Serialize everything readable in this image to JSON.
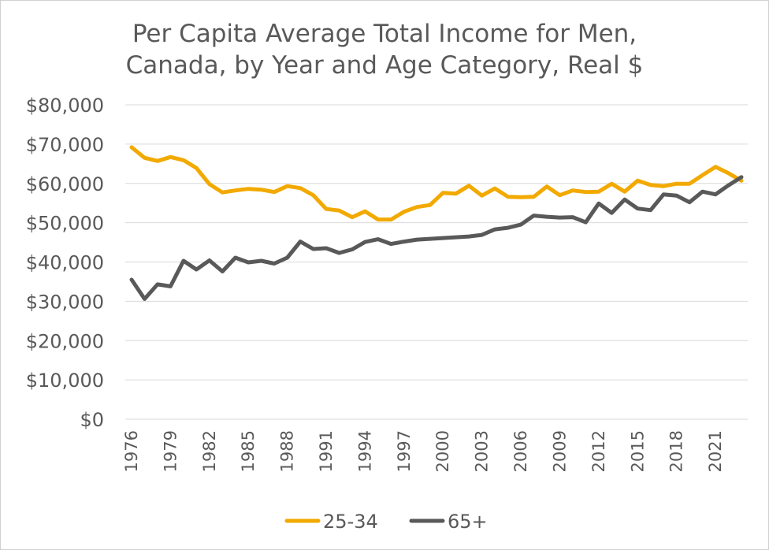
{
  "chart_data": {
    "type": "line",
    "title_lines": [
      "Per Capita Average Total Income for Men,",
      "Canada, by Year and Age Category, Real $"
    ],
    "xlabel": "",
    "ylabel": "",
    "x": [
      1976,
      1977,
      1978,
      1979,
      1980,
      1981,
      1982,
      1983,
      1984,
      1985,
      1986,
      1987,
      1988,
      1989,
      1990,
      1991,
      1992,
      1993,
      1994,
      1995,
      1996,
      1997,
      1998,
      1999,
      2000,
      2001,
      2002,
      2003,
      2004,
      2005,
      2006,
      2007,
      2008,
      2009,
      2010,
      2011,
      2012,
      2013,
      2014,
      2015,
      2016,
      2017,
      2018,
      2019,
      2020,
      2021,
      2022,
      2023
    ],
    "x_tick_labels": [
      "1976",
      "1979",
      "1982",
      "1985",
      "1988",
      "1991",
      "1994",
      "1997",
      "2000",
      "2003",
      "2006",
      "2009",
      "2012",
      "2015",
      "2018",
      "2021"
    ],
    "ylim": [
      0,
      80000
    ],
    "y_ticks": [
      0,
      10000,
      20000,
      30000,
      40000,
      50000,
      60000,
      70000,
      80000
    ],
    "y_tick_labels": [
      "$0",
      "$10,000",
      "$20,000",
      "$30,000",
      "$40,000",
      "$50,000",
      "$60,000",
      "$70,000",
      "$80,000"
    ],
    "grid": "horizontal",
    "legend_position": "bottom",
    "series": [
      {
        "name": "25-34",
        "color": "#F2A900",
        "values": [
          69200,
          66500,
          65700,
          66700,
          65900,
          63900,
          59800,
          57700,
          58200,
          58600,
          58400,
          57800,
          59300,
          58800,
          57000,
          53500,
          53100,
          51400,
          52900,
          50800,
          50800,
          52800,
          54000,
          54500,
          57600,
          57400,
          59400,
          56900,
          58700,
          56600,
          56500,
          56600,
          59200,
          57000,
          58200,
          57800,
          57900,
          59900,
          57900,
          60700,
          59600,
          59300,
          59900,
          59900,
          62100,
          64200,
          62600,
          60700
        ]
      },
      {
        "name": "65+",
        "color": "#595959",
        "values": [
          35500,
          30600,
          34300,
          33800,
          40300,
          38100,
          40400,
          37600,
          41100,
          39900,
          40300,
          39600,
          41100,
          45200,
          43300,
          43500,
          42300,
          43200,
          45100,
          45800,
          44600,
          45200,
          45700,
          45900,
          46100,
          46300,
          46500,
          46900,
          48300,
          48700,
          49500,
          51800,
          51500,
          51300,
          51400,
          50100,
          54900,
          52500,
          55900,
          53600,
          53200,
          57200,
          56900,
          55200,
          57900,
          57200,
          59500,
          61600
        ]
      }
    ]
  }
}
